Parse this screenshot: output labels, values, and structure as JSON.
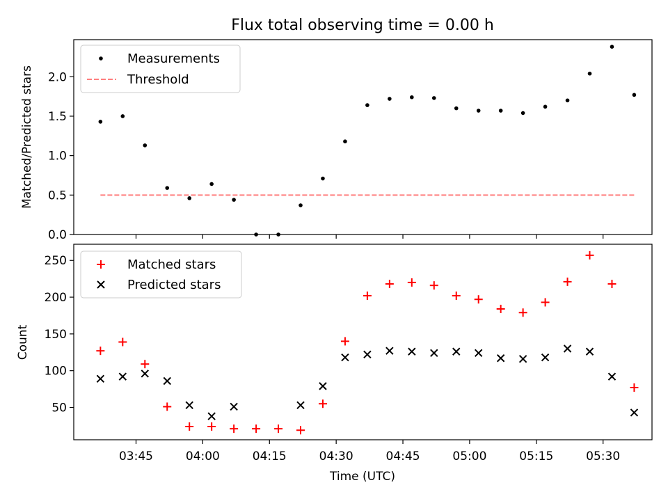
{
  "chart_data": [
    {
      "type": "scatter",
      "title": "Flux total observing time = 0.00 h",
      "xlabel": "",
      "ylabel": "Matched/Predicted stars",
      "x_unit": "time (UTC)",
      "xlim": [
        "03:31",
        "05:41"
      ],
      "ylim": [
        0,
        2.47
      ],
      "yticks": [
        0.0,
        0.5,
        1.0,
        1.5,
        2.0
      ],
      "ytick_labels": [
        "0.0",
        "0.5",
        "1.0",
        "1.5",
        "2.0"
      ],
      "xticks": [
        "03:45",
        "04:00",
        "04:15",
        "04:30",
        "04:45",
        "05:00",
        "05:15",
        "05:30"
      ],
      "show_xtick_labels": false,
      "grid": false,
      "legend_position": "upper left",
      "legend": [
        {
          "label": "Measurements",
          "marker": "dot",
          "color": "#000000"
        },
        {
          "label": "Threshold",
          "marker": "dashed-line",
          "color": "#ff7f7f"
        }
      ],
      "series": [
        {
          "name": "Measurements",
          "marker": "dot",
          "color": "#000000",
          "x": [
            "03:37",
            "03:42",
            "03:47",
            "03:52",
            "03:57",
            "04:02",
            "04:07",
            "04:12",
            "04:17",
            "04:22",
            "04:27",
            "04:32",
            "04:37",
            "04:42",
            "04:47",
            "04:52",
            "04:57",
            "05:02",
            "05:07",
            "05:12",
            "05:17",
            "05:22",
            "05:27",
            "05:32",
            "05:37"
          ],
          "y": [
            1.43,
            1.5,
            1.13,
            0.59,
            0.46,
            0.64,
            0.44,
            0.0,
            0.0,
            0.37,
            0.71,
            1.18,
            1.64,
            1.72,
            1.74,
            1.73,
            1.6,
            1.57,
            1.57,
            1.54,
            1.62,
            1.7,
            2.04,
            2.38,
            1.77
          ]
        },
        {
          "name": "Threshold",
          "marker": "dashed-line",
          "color": "#ff7f7f",
          "x": [
            "03:37",
            "05:37"
          ],
          "y": [
            0.5,
            0.5
          ]
        }
      ]
    },
    {
      "type": "scatter",
      "title": "",
      "xlabel": "Time (UTC)",
      "ylabel": "Count",
      "x_unit": "time (UTC)",
      "xlim": [
        "03:31",
        "05:41"
      ],
      "ylim": [
        6,
        272
      ],
      "yticks": [
        50,
        100,
        150,
        200,
        250
      ],
      "ytick_labels": [
        "50",
        "100",
        "150",
        "200",
        "250"
      ],
      "xticks": [
        "03:45",
        "04:00",
        "04:15",
        "04:30",
        "04:45",
        "05:00",
        "05:15",
        "05:30"
      ],
      "xtick_labels": [
        "03:45",
        "04:00",
        "04:15",
        "04:30",
        "04:45",
        "05:00",
        "05:15",
        "05:30"
      ],
      "show_xtick_labels": true,
      "grid": false,
      "legend_position": "upper left",
      "legend": [
        {
          "label": "Matched stars",
          "marker": "plus",
          "color": "#ff0000"
        },
        {
          "label": "Predicted stars",
          "marker": "x",
          "color": "#000000"
        }
      ],
      "series": [
        {
          "name": "Matched stars",
          "marker": "plus",
          "color": "#ff0000",
          "x": [
            "03:37",
            "03:42",
            "03:47",
            "03:52",
            "03:57",
            "04:02",
            "04:07",
            "04:12",
            "04:17",
            "04:22",
            "04:27",
            "04:32",
            "04:37",
            "04:42",
            "04:47",
            "04:52",
            "04:57",
            "05:02",
            "05:07",
            "05:12",
            "05:17",
            "05:22",
            "05:27",
            "05:32",
            "05:37"
          ],
          "y": [
            127,
            139,
            109,
            51,
            24,
            24,
            21,
            21,
            21,
            19,
            55,
            140,
            202,
            218,
            220,
            216,
            202,
            197,
            184,
            179,
            193,
            221,
            257,
            218,
            77
          ]
        },
        {
          "name": "Predicted stars",
          "marker": "x",
          "color": "#000000",
          "x": [
            "03:37",
            "03:42",
            "03:47",
            "03:52",
            "03:57",
            "04:02",
            "04:07",
            "04:12",
            "04:17",
            "04:22",
            "04:27",
            "04:32",
            "04:37",
            "04:42",
            "04:47",
            "04:52",
            "04:57",
            "05:02",
            "05:07",
            "05:12",
            "05:17",
            "05:22",
            "05:27",
            "05:32",
            "05:37"
          ],
          "y": [
            89,
            92,
            96,
            86,
            53,
            38,
            51,
            null,
            null,
            53,
            79,
            118,
            122,
            127,
            126,
            124,
            126,
            124,
            117,
            116,
            118,
            130,
            126,
            92,
            43
          ]
        }
      ]
    }
  ]
}
